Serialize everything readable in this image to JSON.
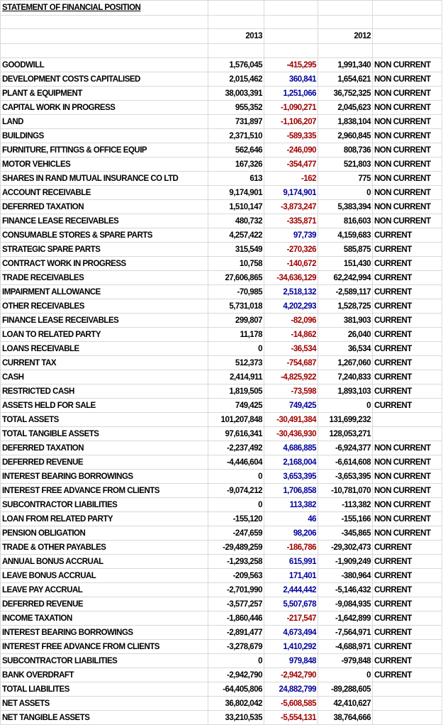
{
  "header": {
    "title": "STATEMENT OF FINANCIAL POSITION",
    "years": [
      "2013",
      "2012"
    ]
  },
  "table": {
    "rows": [
      [
        "GOODWILL",
        "1,576,045",
        "-415,295",
        "1,991,340",
        "NON CURRENT"
      ],
      [
        "DEVELOPMENT COSTS CAPITALISED",
        "2,015,462",
        "360,841",
        "1,654,621",
        "NON CURRENT"
      ],
      [
        "PLANT & EQUIPMENT",
        "38,003,391",
        "1,251,066",
        "36,752,325",
        "NON CURRENT"
      ],
      [
        "CAPITAL WORK IN PROGRESS",
        "955,352",
        "-1,090,271",
        "2,045,623",
        "NON CURRENT"
      ],
      [
        "LAND",
        "731,897",
        "-1,106,207",
        "1,838,104",
        "NON CURRENT"
      ],
      [
        "BUILDINGS",
        "2,371,510",
        "-589,335",
        "2,960,845",
        "NON CURRENT"
      ],
      [
        "FURNITURE, FITTINGS & OFFICE EQUIP",
        "562,646",
        "-246,090",
        "808,736",
        "NON CURRENT"
      ],
      [
        "MOTOR VEHICLES",
        "167,326",
        "-354,477",
        "521,803",
        "NON CURRENT"
      ],
      [
        "SHARES IN RAND MUTUAL INSURANCE CO LTD",
        "613",
        "-162",
        "775",
        "NON CURRENT"
      ],
      [
        "ACCOUNT RECEIVABLE",
        "9,174,901",
        "9,174,901",
        "0",
        "NON CURRENT"
      ],
      [
        "DEFERRED TAXATION",
        "1,510,147",
        "-3,873,247",
        "5,383,394",
        "NON CURRENT"
      ],
      [
        "FINANCE LEASE RECEIVABLES",
        "480,732",
        "-335,871",
        "816,603",
        "NON CURRENT"
      ],
      [
        "CONSUMABLE STORES & SPARE PARTS",
        "4,257,422",
        "97,739",
        "4,159,683",
        "CURRENT"
      ],
      [
        "STRATEGIC SPARE PARTS",
        "315,549",
        "-270,326",
        "585,875",
        "CURRENT"
      ],
      [
        "CONTRACT WORK IN PROGRESS",
        "10,758",
        "-140,672",
        "151,430",
        "CURRENT"
      ],
      [
        "TRADE RECEIVABLES",
        "27,606,865",
        "-34,636,129",
        "62,242,994",
        "CURRENT"
      ],
      [
        "IMPAIRMENT ALLOWANCE",
        "-70,985",
        "2,518,132",
        "-2,589,117",
        "CURRENT"
      ],
      [
        "OTHER RECEIVABLES",
        "5,731,018",
        "4,202,293",
        "1,528,725",
        "CURRENT"
      ],
      [
        "FINANCE LEASE RECEIVABLES",
        "299,807",
        "-82,096",
        "381,903",
        "CURRENT"
      ],
      [
        "LOAN TO RELATED PARTY",
        "11,178",
        "-14,862",
        "26,040",
        "CURRENT"
      ],
      [
        "LOANS RECEIVABLE",
        "0",
        "-36,534",
        "36,534",
        "CURRENT"
      ],
      [
        "CURRENT TAX",
        "512,373",
        "-754,687",
        "1,267,060",
        "CURRENT"
      ],
      [
        "CASH",
        "2,414,911",
        "-4,825,922",
        "7,240,833",
        "CURRENT"
      ],
      [
        "RESTRICTED CASH",
        "1,819,505",
        "-73,598",
        "1,893,103",
        "CURRENT"
      ],
      [
        "ASSETS HELD FOR SALE",
        "749,425",
        "749,425",
        "0",
        "CURRENT"
      ],
      [
        "TOTAL ASSETS",
        "101,207,848",
        "-30,491,384",
        "131,699,232"
      ],
      [
        "TOTAL TANGIBLE ASSETS",
        "97,616,341",
        "-30,436,930",
        "128,053,271"
      ],
      [
        "DEFERRED TAXATION",
        "-2,237,492",
        "4,686,885",
        "-6,924,377",
        "NON CURRENT"
      ],
      [
        "DEFERRED REVENUE",
        "-4,446,604",
        "2,168,004",
        "-6,614,608",
        "NON CURRENT"
      ],
      [
        "INTEREST BEARING BORROWINGS",
        "0",
        "3,653,395",
        "-3,653,395",
        "NON CURRENT"
      ],
      [
        "INTEREST FREE ADVANCE FROM CLIENTS",
        "-9,074,212",
        "1,706,858",
        "-10,781,070",
        "NON CURRENT"
      ],
      [
        "SUBCONTRACTOR LIABILITIES",
        "0",
        "113,382",
        "-113,382",
        "NON CURRENT"
      ],
      [
        "LOAN FROM RELATED PARTY",
        "-155,120",
        "46",
        "-155,166",
        "NON CURRENT"
      ],
      [
        "PENSION OBLIGATION",
        "-247,659",
        "98,206",
        "-345,865",
        "NON CURRENT"
      ],
      [
        "TRADE & OTHER PAYABLES",
        "-29,489,259",
        "-186,786",
        "-29,302,473",
        "CURRENT"
      ],
      [
        "ANNUAL BONUS ACCRUAL",
        "-1,293,258",
        "615,991",
        "-1,909,249",
        "CURRENT"
      ],
      [
        "LEAVE BONUS ACCRUAL",
        "-209,563",
        "171,401",
        "-380,964",
        "CURRENT"
      ],
      [
        "LEAVE PAY ACCRUAL",
        "-2,701,990",
        "2,444,442",
        "-5,146,432",
        "CURRENT"
      ],
      [
        "DEFERRED REVENUE",
        "-3,577,257",
        "5,507,678",
        "-9,084,935",
        "CURRENT"
      ],
      [
        "INCOME TAXATION",
        "-1,860,446",
        "-217,547",
        "-1,642,899",
        "CURRENT"
      ],
      [
        "INTEREST BEARING BORROWINGS",
        "-2,891,477",
        "4,673,494",
        "-7,564,971",
        "CURRENT"
      ],
      [
        "INTEREST FREE ADVANCE FROM CLIENTS",
        "-3,278,679",
        "1,410,292",
        "-4,688,971",
        "CURRENT"
      ],
      [
        "SUBCONTRACTOR LIABILITIES",
        "0",
        "979,848",
        "-979,848",
        "CURRENT"
      ],
      [
        "BANK OVERDRAFT",
        "-2,942,790",
        "-2,942,790",
        "0",
        "CURRENT"
      ],
      [
        "TOTAL LIABILITES",
        "-64,405,806",
        "24,882,799",
        "-89,288,605"
      ],
      [
        "NET ASSETS",
        "36,802,042",
        "-5,608,585",
        "42,410,627"
      ],
      [
        "NET TANGIBLE ASSETS",
        "33,210,535",
        "-5,554,131",
        "38,764,666"
      ]
    ]
  }
}
